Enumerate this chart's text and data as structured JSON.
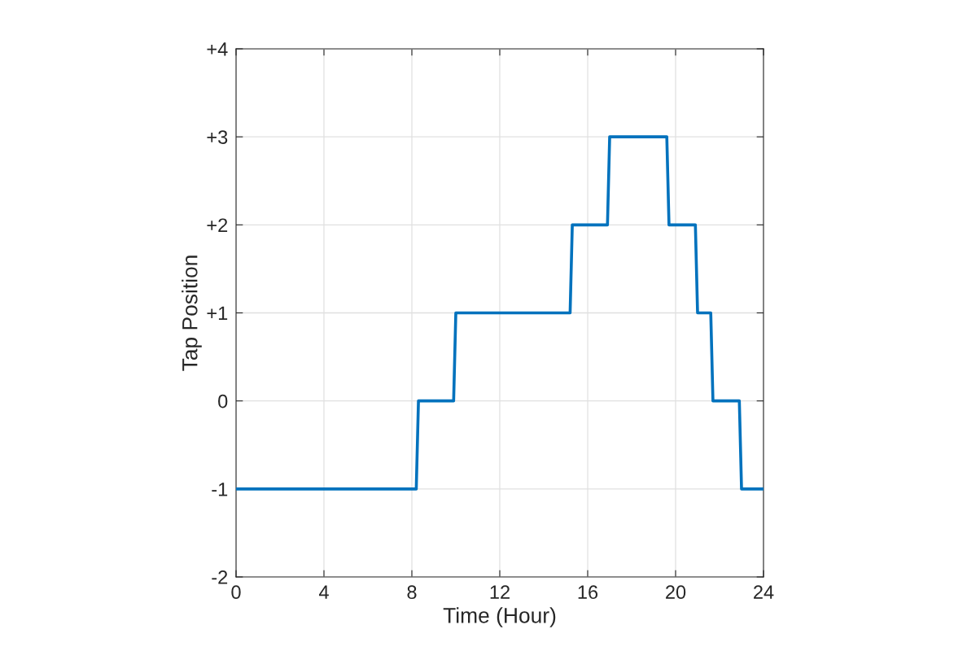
{
  "chart_data": {
    "type": "line",
    "xlabel": "Time (Hour)",
    "ylabel": "Tap Position",
    "x": [
      0,
      8.2,
      8.3,
      9.9,
      10,
      15.2,
      15.3,
      16.9,
      17,
      19.6,
      19.7,
      20.9,
      21,
      21.6,
      21.7,
      22.9,
      23,
      24
    ],
    "series": [
      {
        "color": "#0072bd",
        "values": [
          -1,
          -1,
          0,
          0,
          1,
          1,
          2,
          2,
          3,
          3,
          2,
          2,
          1,
          1,
          0,
          0,
          -1,
          -1
        ]
      }
    ],
    "xlim": [
      0,
      24
    ],
    "xticks": [
      0,
      4,
      8,
      12,
      16,
      20,
      24
    ],
    "ylim": [
      -2,
      4
    ],
    "yticks": [
      -2,
      -1,
      0,
      {
        "value": 1,
        "label": "+1"
      },
      {
        "value": 2,
        "label": "+2"
      },
      {
        "value": 3,
        "label": "+3"
      },
      {
        "value": 4,
        "label": "+4"
      }
    ],
    "grid": true,
    "marker": "none",
    "line_style": "solid"
  }
}
